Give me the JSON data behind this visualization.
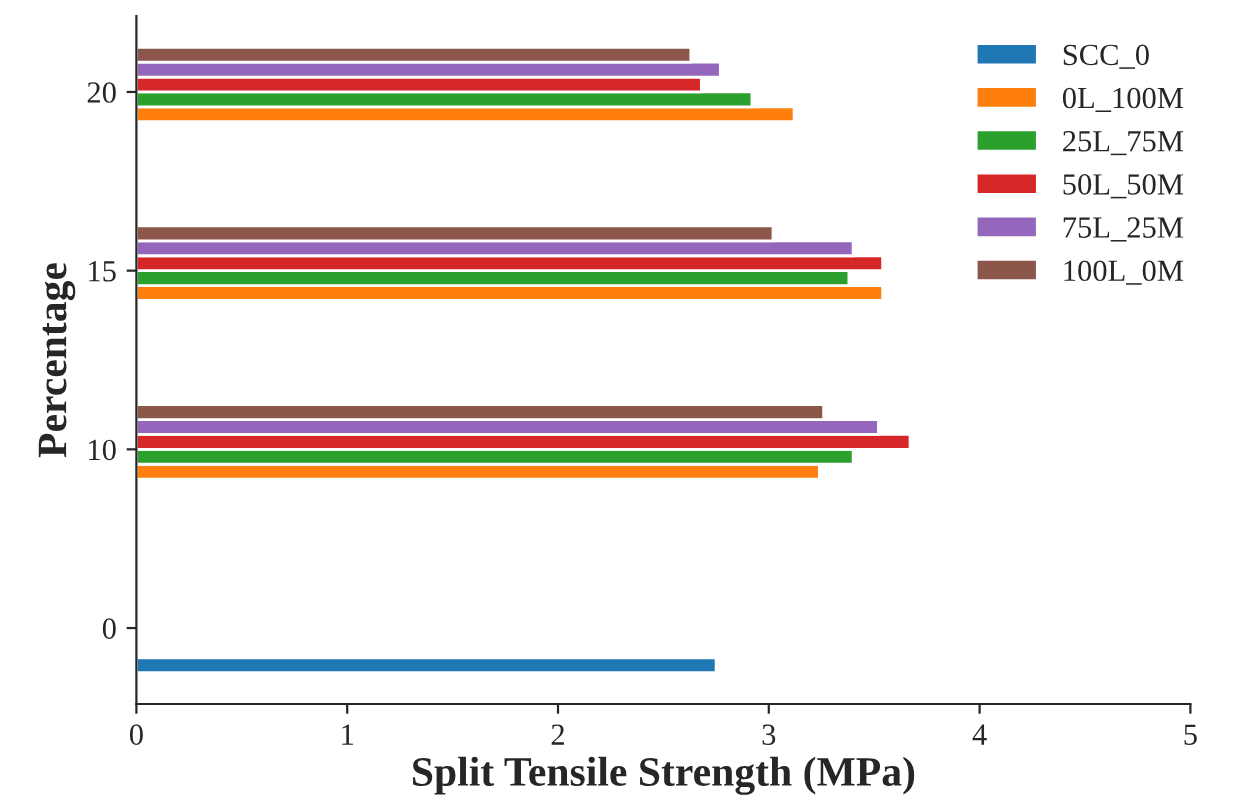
{
  "chart_data": {
    "type": "bar",
    "orientation": "horizontal",
    "xlabel": "Split Tensile Strength (MPa)",
    "ylabel": "Percentage",
    "categories": [
      "20",
      "15",
      "10",
      "0"
    ],
    "series": [
      {
        "name": "SCC_0",
        "color": "#1f77b4",
        "values": [
          null,
          null,
          null,
          2.75
        ]
      },
      {
        "name": "0L_100M",
        "color": "#ff7f0e",
        "values": [
          3.12,
          3.54,
          3.24,
          null
        ]
      },
      {
        "name": "25L_75M",
        "color": "#2ca02c",
        "values": [
          2.92,
          3.38,
          3.4,
          null
        ]
      },
      {
        "name": "50L_50M",
        "color": "#d62728",
        "values": [
          2.68,
          3.54,
          3.67,
          null
        ]
      },
      {
        "name": "75L_25M",
        "color": "#9467bd",
        "values": [
          2.77,
          3.4,
          3.52,
          null
        ]
      },
      {
        "name": "100L_0M",
        "color": "#8c564b",
        "values": [
          2.63,
          3.02,
          3.26,
          null
        ]
      }
    ],
    "xlim": [
      0,
      5
    ],
    "xticks": [
      0,
      1,
      2,
      3,
      4,
      5
    ],
    "grid": false,
    "legend": "top right"
  }
}
